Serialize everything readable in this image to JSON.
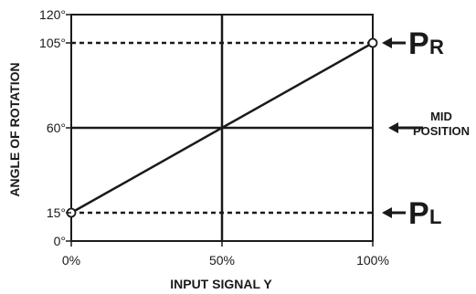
{
  "chart_data": {
    "type": "line",
    "xlabel": "INPUT SIGNAL Y",
    "ylabel": "ANGLE OF ROTATION",
    "xlim": [
      0,
      100
    ],
    "ylim": [
      0,
      120
    ],
    "x_ticks": [
      {
        "value": 0,
        "label": "0%"
      },
      {
        "value": 50,
        "label": "50%"
      },
      {
        "value": 100,
        "label": "100%"
      }
    ],
    "y_ticks": [
      {
        "value": 0,
        "label": "0°"
      },
      {
        "value": 15,
        "label": "15°"
      },
      {
        "value": 60,
        "label": "60°"
      },
      {
        "value": 105,
        "label": "105°"
      },
      {
        "value": 120,
        "label": "120°"
      }
    ],
    "series": [
      {
        "x": [
          0,
          100
        ],
        "y": [
          15,
          105
        ],
        "markers": "open-circle-endpoints"
      }
    ],
    "reference_lines": [
      {
        "y": 105,
        "style": "dotted",
        "label_main": "P",
        "label_sub": "R"
      },
      {
        "y": 60,
        "style": "solid",
        "label": [
          "MID",
          "POSITION"
        ]
      },
      {
        "y": 15,
        "style": "dotted",
        "label_main": "P",
        "label_sub": "L"
      }
    ],
    "vertical_lines": [
      {
        "x": 50,
        "style": "solid"
      }
    ],
    "grid": false
  }
}
